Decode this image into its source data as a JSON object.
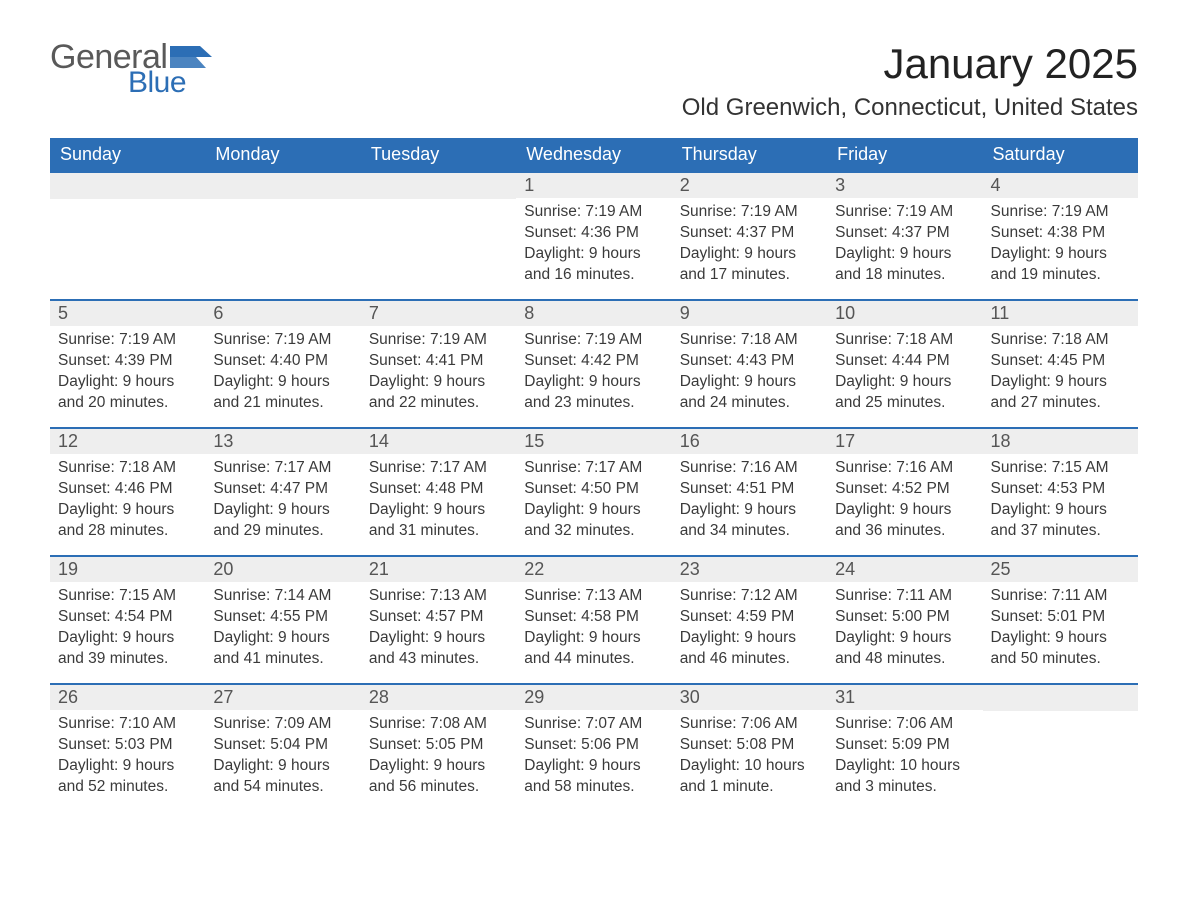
{
  "logo": {
    "word1": "General",
    "word2": "Blue"
  },
  "title": "January 2025",
  "location": "Old Greenwich, Connecticut, United States",
  "colors": {
    "header_bg": "#2c6eb5",
    "header_text": "#ffffff",
    "daynum_bg": "#eeeeee",
    "body_text": "#3a3a3a",
    "page_bg": "#ffffff"
  },
  "day_headers": [
    "Sunday",
    "Monday",
    "Tuesday",
    "Wednesday",
    "Thursday",
    "Friday",
    "Saturday"
  ],
  "weeks": [
    [
      {
        "empty": true
      },
      {
        "empty": true
      },
      {
        "empty": true
      },
      {
        "day": "1",
        "sunrise": "Sunrise: 7:19 AM",
        "sunset": "Sunset: 4:36 PM",
        "dl1": "Daylight: 9 hours",
        "dl2": "and 16 minutes."
      },
      {
        "day": "2",
        "sunrise": "Sunrise: 7:19 AM",
        "sunset": "Sunset: 4:37 PM",
        "dl1": "Daylight: 9 hours",
        "dl2": "and 17 minutes."
      },
      {
        "day": "3",
        "sunrise": "Sunrise: 7:19 AM",
        "sunset": "Sunset: 4:37 PM",
        "dl1": "Daylight: 9 hours",
        "dl2": "and 18 minutes."
      },
      {
        "day": "4",
        "sunrise": "Sunrise: 7:19 AM",
        "sunset": "Sunset: 4:38 PM",
        "dl1": "Daylight: 9 hours",
        "dl2": "and 19 minutes."
      }
    ],
    [
      {
        "day": "5",
        "sunrise": "Sunrise: 7:19 AM",
        "sunset": "Sunset: 4:39 PM",
        "dl1": "Daylight: 9 hours",
        "dl2": "and 20 minutes."
      },
      {
        "day": "6",
        "sunrise": "Sunrise: 7:19 AM",
        "sunset": "Sunset: 4:40 PM",
        "dl1": "Daylight: 9 hours",
        "dl2": "and 21 minutes."
      },
      {
        "day": "7",
        "sunrise": "Sunrise: 7:19 AM",
        "sunset": "Sunset: 4:41 PM",
        "dl1": "Daylight: 9 hours",
        "dl2": "and 22 minutes."
      },
      {
        "day": "8",
        "sunrise": "Sunrise: 7:19 AM",
        "sunset": "Sunset: 4:42 PM",
        "dl1": "Daylight: 9 hours",
        "dl2": "and 23 minutes."
      },
      {
        "day": "9",
        "sunrise": "Sunrise: 7:18 AM",
        "sunset": "Sunset: 4:43 PM",
        "dl1": "Daylight: 9 hours",
        "dl2": "and 24 minutes."
      },
      {
        "day": "10",
        "sunrise": "Sunrise: 7:18 AM",
        "sunset": "Sunset: 4:44 PM",
        "dl1": "Daylight: 9 hours",
        "dl2": "and 25 minutes."
      },
      {
        "day": "11",
        "sunrise": "Sunrise: 7:18 AM",
        "sunset": "Sunset: 4:45 PM",
        "dl1": "Daylight: 9 hours",
        "dl2": "and 27 minutes."
      }
    ],
    [
      {
        "day": "12",
        "sunrise": "Sunrise: 7:18 AM",
        "sunset": "Sunset: 4:46 PM",
        "dl1": "Daylight: 9 hours",
        "dl2": "and 28 minutes."
      },
      {
        "day": "13",
        "sunrise": "Sunrise: 7:17 AM",
        "sunset": "Sunset: 4:47 PM",
        "dl1": "Daylight: 9 hours",
        "dl2": "and 29 minutes."
      },
      {
        "day": "14",
        "sunrise": "Sunrise: 7:17 AM",
        "sunset": "Sunset: 4:48 PM",
        "dl1": "Daylight: 9 hours",
        "dl2": "and 31 minutes."
      },
      {
        "day": "15",
        "sunrise": "Sunrise: 7:17 AM",
        "sunset": "Sunset: 4:50 PM",
        "dl1": "Daylight: 9 hours",
        "dl2": "and 32 minutes."
      },
      {
        "day": "16",
        "sunrise": "Sunrise: 7:16 AM",
        "sunset": "Sunset: 4:51 PM",
        "dl1": "Daylight: 9 hours",
        "dl2": "and 34 minutes."
      },
      {
        "day": "17",
        "sunrise": "Sunrise: 7:16 AM",
        "sunset": "Sunset: 4:52 PM",
        "dl1": "Daylight: 9 hours",
        "dl2": "and 36 minutes."
      },
      {
        "day": "18",
        "sunrise": "Sunrise: 7:15 AM",
        "sunset": "Sunset: 4:53 PM",
        "dl1": "Daylight: 9 hours",
        "dl2": "and 37 minutes."
      }
    ],
    [
      {
        "day": "19",
        "sunrise": "Sunrise: 7:15 AM",
        "sunset": "Sunset: 4:54 PM",
        "dl1": "Daylight: 9 hours",
        "dl2": "and 39 minutes."
      },
      {
        "day": "20",
        "sunrise": "Sunrise: 7:14 AM",
        "sunset": "Sunset: 4:55 PM",
        "dl1": "Daylight: 9 hours",
        "dl2": "and 41 minutes."
      },
      {
        "day": "21",
        "sunrise": "Sunrise: 7:13 AM",
        "sunset": "Sunset: 4:57 PM",
        "dl1": "Daylight: 9 hours",
        "dl2": "and 43 minutes."
      },
      {
        "day": "22",
        "sunrise": "Sunrise: 7:13 AM",
        "sunset": "Sunset: 4:58 PM",
        "dl1": "Daylight: 9 hours",
        "dl2": "and 44 minutes."
      },
      {
        "day": "23",
        "sunrise": "Sunrise: 7:12 AM",
        "sunset": "Sunset: 4:59 PM",
        "dl1": "Daylight: 9 hours",
        "dl2": "and 46 minutes."
      },
      {
        "day": "24",
        "sunrise": "Sunrise: 7:11 AM",
        "sunset": "Sunset: 5:00 PM",
        "dl1": "Daylight: 9 hours",
        "dl2": "and 48 minutes."
      },
      {
        "day": "25",
        "sunrise": "Sunrise: 7:11 AM",
        "sunset": "Sunset: 5:01 PM",
        "dl1": "Daylight: 9 hours",
        "dl2": "and 50 minutes."
      }
    ],
    [
      {
        "day": "26",
        "sunrise": "Sunrise: 7:10 AM",
        "sunset": "Sunset: 5:03 PM",
        "dl1": "Daylight: 9 hours",
        "dl2": "and 52 minutes."
      },
      {
        "day": "27",
        "sunrise": "Sunrise: 7:09 AM",
        "sunset": "Sunset: 5:04 PM",
        "dl1": "Daylight: 9 hours",
        "dl2": "and 54 minutes."
      },
      {
        "day": "28",
        "sunrise": "Sunrise: 7:08 AM",
        "sunset": "Sunset: 5:05 PM",
        "dl1": "Daylight: 9 hours",
        "dl2": "and 56 minutes."
      },
      {
        "day": "29",
        "sunrise": "Sunrise: 7:07 AM",
        "sunset": "Sunset: 5:06 PM",
        "dl1": "Daylight: 9 hours",
        "dl2": "and 58 minutes."
      },
      {
        "day": "30",
        "sunrise": "Sunrise: 7:06 AM",
        "sunset": "Sunset: 5:08 PM",
        "dl1": "Daylight: 10 hours",
        "dl2": "and 1 minute."
      },
      {
        "day": "31",
        "sunrise": "Sunrise: 7:06 AM",
        "sunset": "Sunset: 5:09 PM",
        "dl1": "Daylight: 10 hours",
        "dl2": "and 3 minutes."
      },
      {
        "empty": true
      }
    ]
  ]
}
